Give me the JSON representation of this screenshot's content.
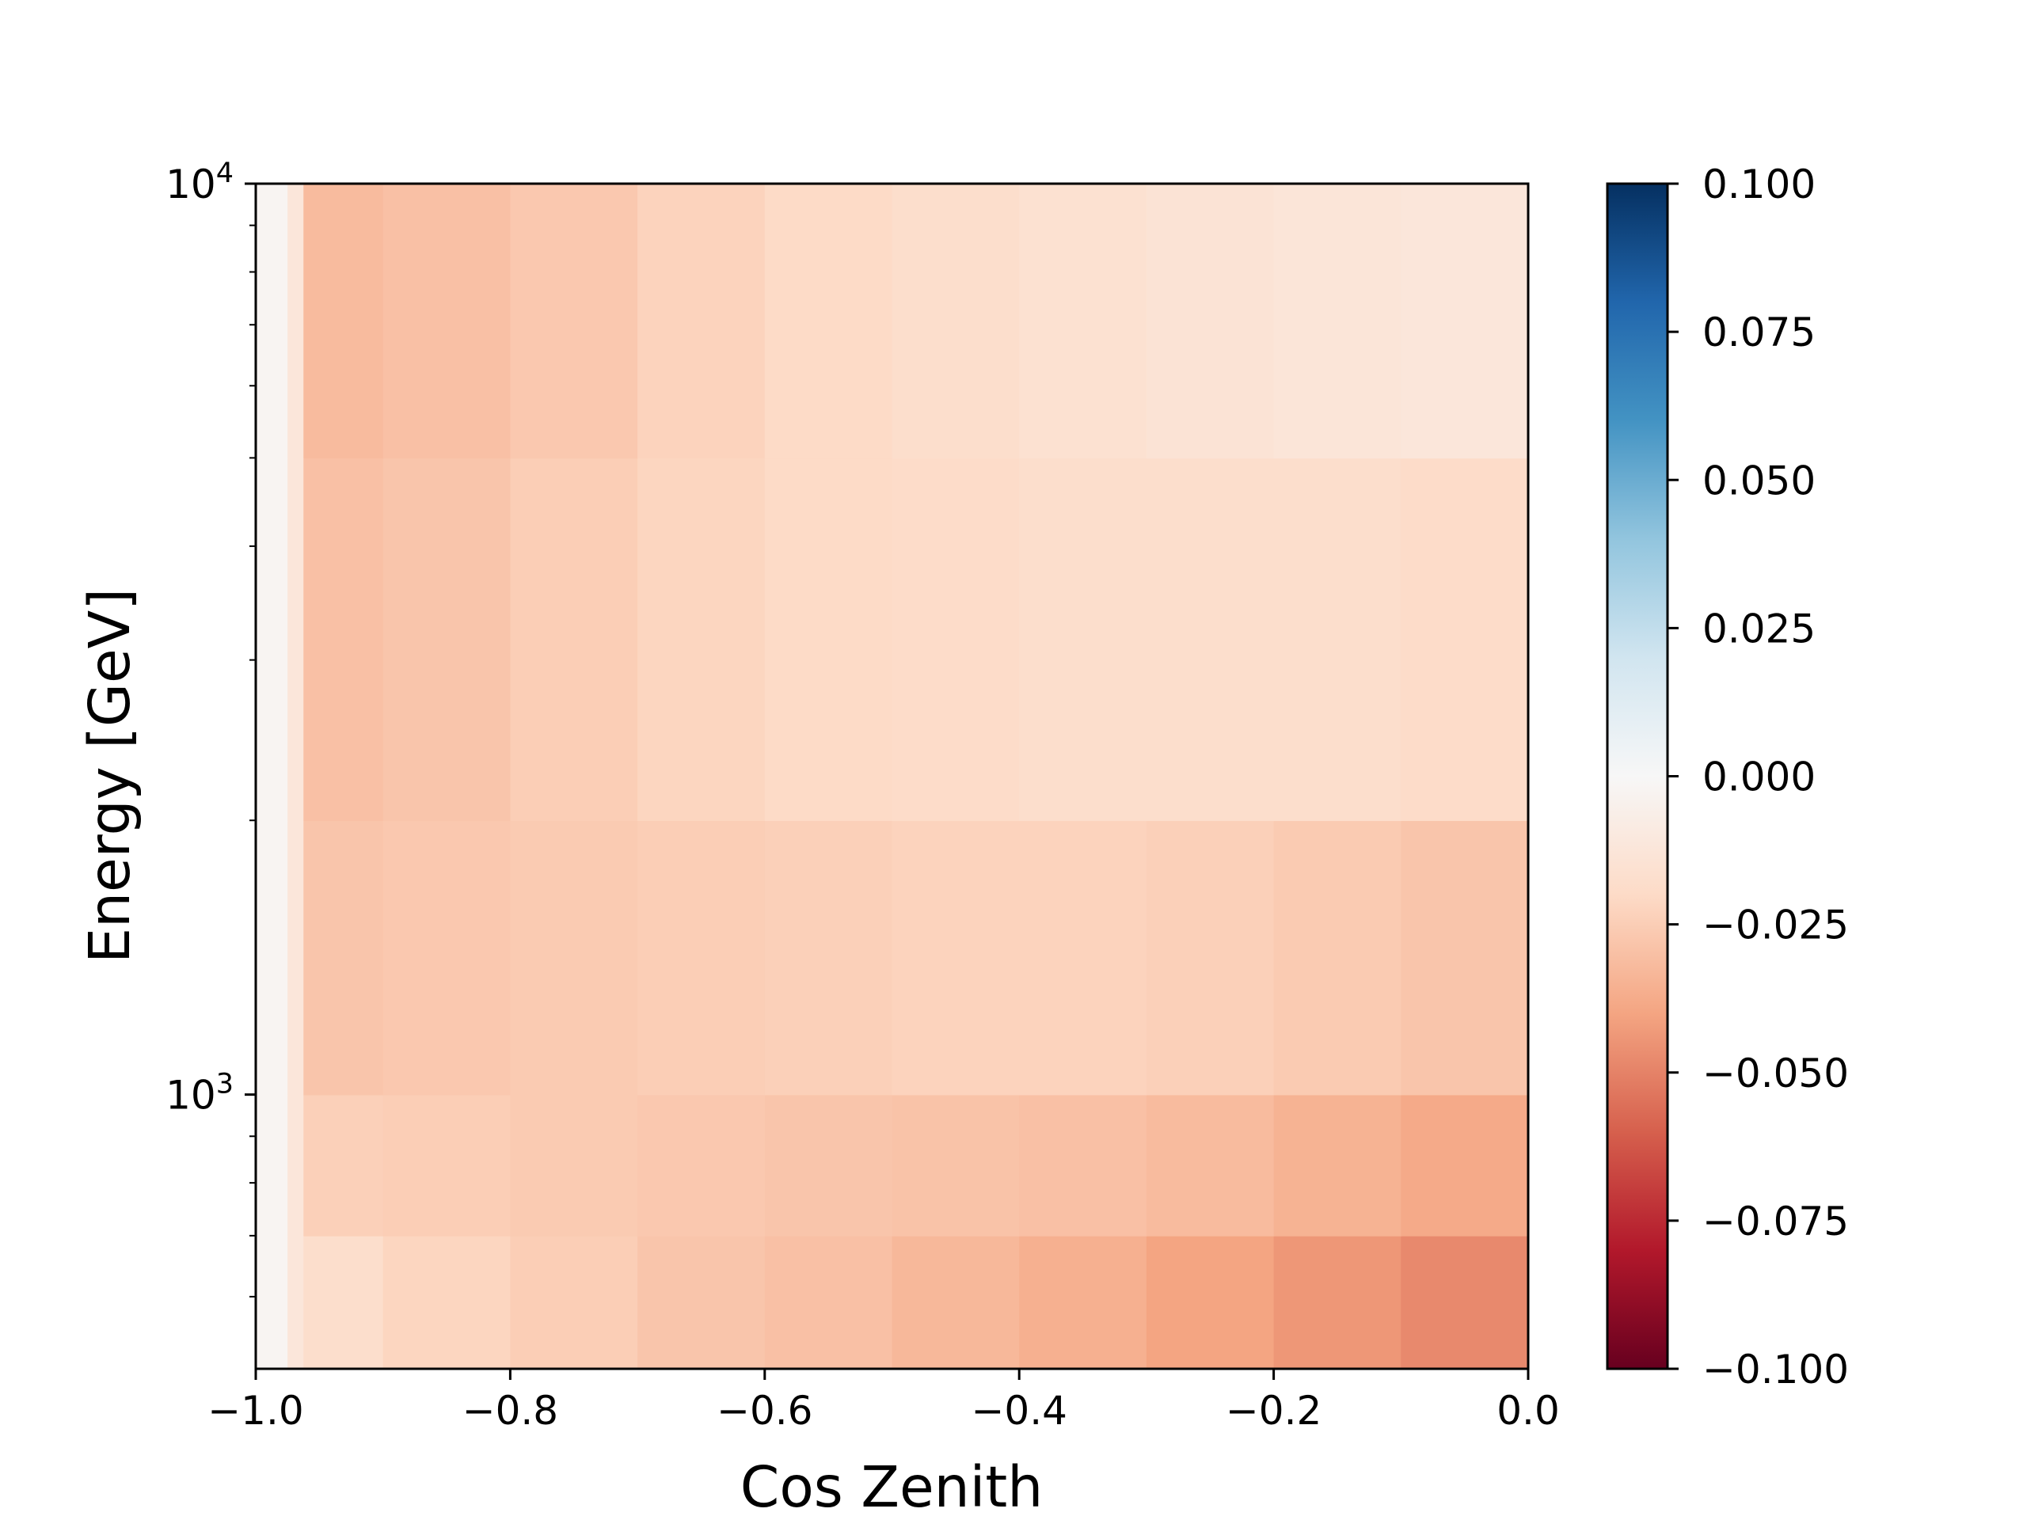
{
  "chart_data": {
    "type": "heatmap",
    "title": "",
    "xlabel": "Cos Zenith",
    "ylabel": "Energy [GeV]",
    "xlim": [
      -1.0,
      0.0
    ],
    "ylim": [
      500,
      10000
    ],
    "yscale": "log",
    "x_ticks": [
      {
        "value": -1.0,
        "label": "−1.0"
      },
      {
        "value": -0.8,
        "label": "−0.8"
      },
      {
        "value": -0.6,
        "label": "−0.6"
      },
      {
        "value": -0.4,
        "label": "−0.4"
      },
      {
        "value": -0.2,
        "label": "−0.2"
      },
      {
        "value": 0.0,
        "label": "0.0"
      }
    ],
    "y_ticks": [
      {
        "value": 1000,
        "base": "10",
        "exp": "3"
      },
      {
        "value": 10000,
        "base": "10",
        "exp": "4"
      }
    ],
    "y_minor_ticks": [
      600,
      700,
      800,
      900,
      2000,
      3000,
      4000,
      5000,
      6000,
      7000,
      8000,
      9000
    ],
    "grid": false,
    "colorbar": {
      "colormap": "RdBu",
      "vmin": -0.1,
      "vmax": 0.1,
      "ticks": [
        {
          "value": 0.1,
          "label": "0.100"
        },
        {
          "value": 0.075,
          "label": "0.075"
        },
        {
          "value": 0.05,
          "label": "0.050"
        },
        {
          "value": 0.025,
          "label": "0.025"
        },
        {
          "value": 0.0,
          "label": "0.000"
        },
        {
          "value": -0.025,
          "label": "−0.025"
        },
        {
          "value": -0.05,
          "label": "−0.050"
        },
        {
          "value": -0.075,
          "label": "−0.075"
        },
        {
          "value": -0.1,
          "label": "−0.100"
        }
      ],
      "colors": [
        "#67001f",
        "#b2182b",
        "#d6604d",
        "#f4a582",
        "#fddbc7",
        "#f7f7f7",
        "#d1e5f0",
        "#92c5de",
        "#4393c3",
        "#2166ac",
        "#053061"
      ]
    },
    "x_edges": [
      -1.0,
      -0.975,
      -0.9625,
      -0.9,
      -0.8,
      -0.7,
      -0.6,
      -0.5,
      -0.4,
      -0.3,
      -0.2,
      -0.1,
      0.0
    ],
    "y_edges": [
      500,
      700,
      1000,
      2000,
      5000,
      10000
    ],
    "z_rows_bottom_to_top": [
      [
        -0.002,
        -0.012,
        -0.018,
        -0.022,
        -0.025,
        -0.028,
        -0.03,
        -0.033,
        -0.036,
        -0.04,
        -0.044,
        -0.048
      ],
      [
        -0.002,
        -0.012,
        -0.024,
        -0.025,
        -0.026,
        -0.027,
        -0.028,
        -0.029,
        -0.03,
        -0.032,
        -0.035,
        -0.038
      ],
      [
        -0.002,
        -0.012,
        -0.028,
        -0.027,
        -0.026,
        -0.025,
        -0.024,
        -0.023,
        -0.023,
        -0.024,
        -0.026,
        -0.028
      ],
      [
        -0.002,
        -0.012,
        -0.03,
        -0.028,
        -0.025,
        -0.022,
        -0.02,
        -0.019,
        -0.018,
        -0.018,
        -0.018,
        -0.019
      ],
      [
        -0.002,
        -0.012,
        -0.032,
        -0.03,
        -0.027,
        -0.023,
        -0.02,
        -0.018,
        -0.016,
        -0.014,
        -0.013,
        -0.012
      ]
    ]
  }
}
